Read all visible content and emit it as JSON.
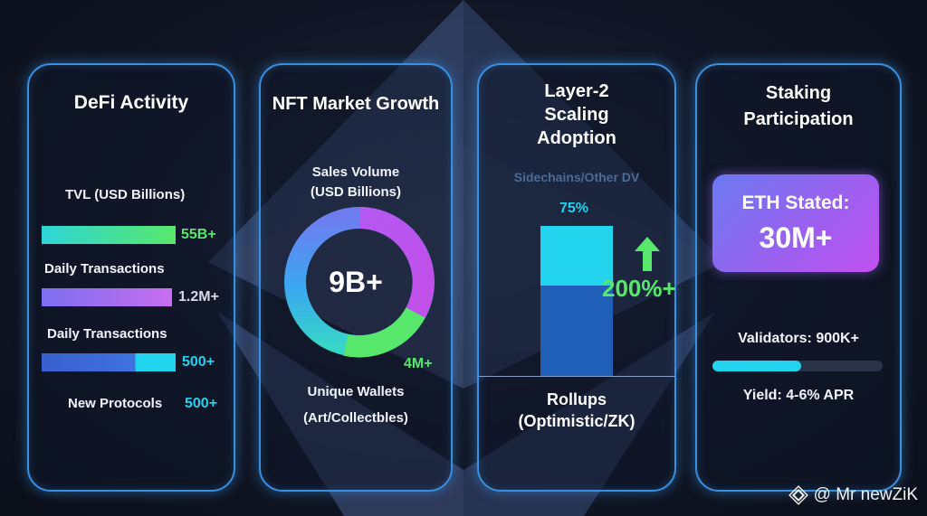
{
  "watermark": {
    "text": "@ Mr newZiK",
    "icon": "binance-diamond-icon"
  },
  "defi": {
    "title": "DeFi Activity",
    "tvl_label": "TVL (USD Billions)",
    "tvl_value": "55B+",
    "daily_tx_label_1": "Daily Transactions",
    "daily_tx_value_1": "1.2M+",
    "daily_tx_label_2": "Daily Transactions",
    "daily_tx_value_2": "500+",
    "protocols_label": "New Protocols",
    "protocols_value": "500+"
  },
  "nft": {
    "title": "NFT Market Growth",
    "sales_label_line1": "Sales Volume",
    "sales_label_line2": "(USD Billions)",
    "center_value": "9B+",
    "wallets_value": "4M+",
    "wallets_label_line1": "Unique Wallets",
    "wallets_label_line2": "(Art/Collectbles)"
  },
  "layer2": {
    "title_line1": "Layer-2",
    "title_line2": "Scaling",
    "title_line3": "Adoption",
    "sidechains_label": "Sidechains/Other DV",
    "percent_label": "75%",
    "growth_value": "200%+",
    "rollups_line1": "Rollups",
    "rollups_line2": "(Optimistic/ZK)"
  },
  "staking": {
    "title_line1": "Staking",
    "title_line2": "Participation",
    "eth_label": "ETH Stated:",
    "eth_value": "30M+",
    "validators_label": "Validators: 900K+",
    "yield_label": "Yield: 4-6% APR"
  },
  "colors": {
    "card_border": "#3b8fe0",
    "accent_green": "#57e86b",
    "accent_cyan": "#22d3ee",
    "accent_purple": "#b25cf0"
  }
}
